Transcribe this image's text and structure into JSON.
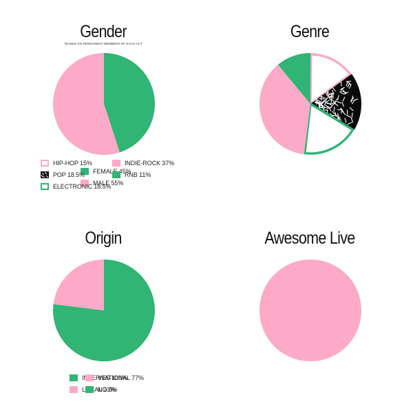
{
  "colors": {
    "green": "#30b574",
    "pink": "#fcaac8",
    "black": "#0a0a0a",
    "white": "#ffffff"
  },
  "chart_data": [
    {
      "type": "pie",
      "title": "Gender",
      "subtitle": "*BASED ON PERMANENT MEMBERS OF EACH ACT",
      "slices": [
        {
          "label": "FEMALE 45%",
          "value": 45,
          "color": "#30b574",
          "pattern": "solid"
        },
        {
          "label": "MALE 55%",
          "value": 55,
          "color": "#fcaac8",
          "pattern": "solid"
        }
      ]
    },
    {
      "type": "pie",
      "title": "Genre",
      "slices": [
        {
          "label": "HIP-HOP 15%",
          "value": 15,
          "color": "#fcaac8",
          "pattern": "outline"
        },
        {
          "label": "POP 18.5%",
          "value": 18.5,
          "color": "#0a0a0a",
          "pattern": "sprinkles"
        },
        {
          "label": "ELECTRONIC 18.5%",
          "value": 18.5,
          "color": "#30b574",
          "pattern": "outline"
        },
        {
          "label": "INDIE-ROCK 37%",
          "value": 37,
          "color": "#fcaac8",
          "pattern": "solid"
        },
        {
          "label": "RNB 11%",
          "value": 11,
          "color": "#30b574",
          "pattern": "solid"
        }
      ]
    },
    {
      "type": "pie",
      "title": "Origin",
      "slices": [
        {
          "label": "INTERNATIONAL 77%",
          "value": 77,
          "color": "#30b574",
          "pattern": "solid"
        },
        {
          "label": "LOCAL 23%",
          "value": 23,
          "color": "#fcaac8",
          "pattern": "solid"
        }
      ]
    },
    {
      "type": "pie",
      "title": "Awesome Live",
      "slices": [
        {
          "label": "YES 100%",
          "value": 100,
          "color": "#fcaac8",
          "pattern": "solid"
        },
        {
          "label": "NO 0%",
          "value": 0,
          "color": "#30b574",
          "pattern": "solid"
        }
      ]
    }
  ]
}
